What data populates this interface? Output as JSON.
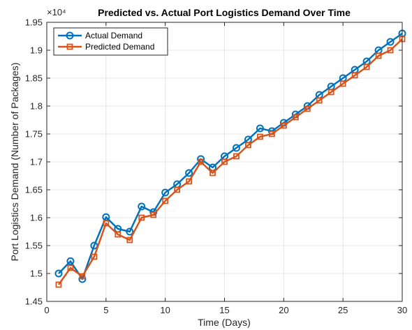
{
  "chart_data": {
    "type": "line",
    "title": "Predicted vs. Actual Port Logistics Demand Over Time",
    "xlabel": "Time (Days)",
    "ylabel": "Port Logistics Demand (Number of Packages)",
    "y_exponent_label": "×10⁴",
    "xlim": [
      0,
      30
    ],
    "ylim": [
      1.45,
      1.95
    ],
    "x_ticks": [
      0,
      5,
      10,
      15,
      20,
      25,
      30
    ],
    "y_ticks": [
      1.45,
      1.5,
      1.55,
      1.6,
      1.65,
      1.7,
      1.75,
      1.8,
      1.85,
      1.9,
      1.95
    ],
    "grid": true,
    "legend_position": "top-left",
    "x": [
      1,
      2,
      3,
      4,
      5,
      6,
      7,
      8,
      9,
      10,
      11,
      12,
      13,
      14,
      15,
      16,
      17,
      18,
      19,
      20,
      21,
      22,
      23,
      24,
      25,
      26,
      27,
      28,
      29,
      30
    ],
    "series": [
      {
        "name": "Actual Demand",
        "color": "#0072BD",
        "marker": "circle",
        "values": [
          1.5,
          1.522,
          1.49,
          1.55,
          1.601,
          1.58,
          1.575,
          1.62,
          1.61,
          1.645,
          1.66,
          1.68,
          1.705,
          1.69,
          1.71,
          1.725,
          1.74,
          1.76,
          1.755,
          1.77,
          1.785,
          1.8,
          1.82,
          1.835,
          1.85,
          1.865,
          1.88,
          1.9,
          1.915,
          1.93
        ]
      },
      {
        "name": "Predicted Demand",
        "color": "#D95319",
        "marker": "square",
        "values": [
          1.48,
          1.51,
          1.495,
          1.53,
          1.59,
          1.57,
          1.56,
          1.6,
          1.605,
          1.63,
          1.65,
          1.665,
          1.7,
          1.68,
          1.7,
          1.71,
          1.73,
          1.745,
          1.75,
          1.765,
          1.78,
          1.795,
          1.81,
          1.825,
          1.84,
          1.855,
          1.87,
          1.89,
          1.9,
          1.92
        ]
      }
    ]
  }
}
